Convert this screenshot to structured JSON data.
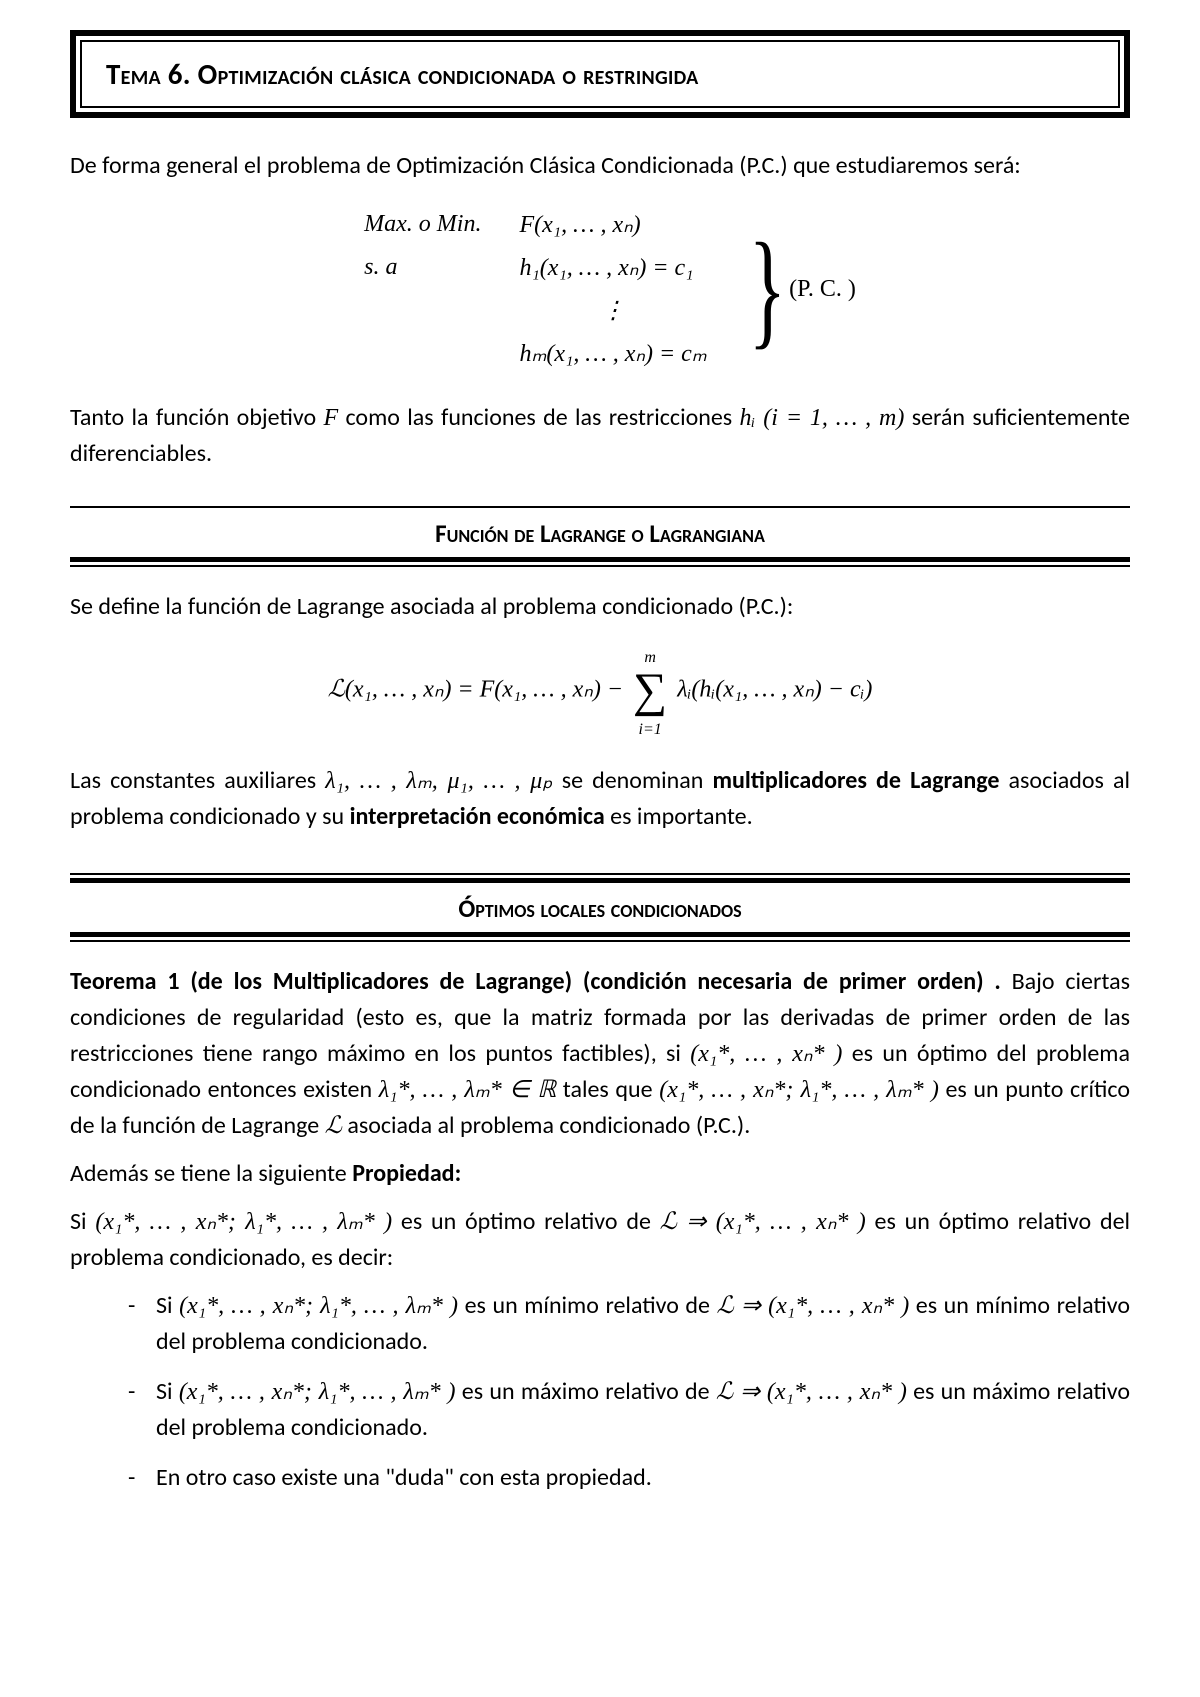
{
  "title": "Tema 6. Optimización clásica condicionada o restringida",
  "intro": "De forma general el problema de Optimización Clásica Condicionada (P.C.) que estudiaremos será:",
  "pc_block": {
    "label_maxmin": "Max. o Min.",
    "expr_F": "F(x₁, … , xₙ)",
    "label_sa": "s. a",
    "expr_h1": "h₁(x₁, … , xₙ) = c₁",
    "vdots": "⋮",
    "expr_hm": "hₘ(x₁, … , xₙ) = cₘ",
    "right_label": "(P. C. )"
  },
  "para_after_pc_a": "Tanto la función objetivo ",
  "para_after_pc_F": "F",
  "para_after_pc_b": " como las funciones de las restricciones ",
  "para_after_pc_h": "hᵢ (i = 1, … , m)",
  "para_after_pc_c": " serán suficientemente diferenciables.",
  "section1": {
    "title": "Función de Lagrange o Lagrangiana",
    "intro": "Se define la función de Lagrange asociada al problema condicionado (P.C.):",
    "lagrange_lhs": "ℒ(x₁, … , xₙ) = F(x₁, … , xₙ) − ",
    "sum_top": "m",
    "sum_bot": "i=1",
    "lagrange_rhs": " λᵢ(hᵢ(x₁, … , xₙ) − cᵢ)",
    "after_a": "Las constantes auxiliares ",
    "after_lambdas": "λ₁, … , λₘ, μ₁, … , μₚ",
    "after_b": " se denominan ",
    "bold1": "multiplicadores de Lagrange",
    "after_c": " asociados al problema condicionado y su ",
    "bold2": "interpretación económica",
    "after_d": " es importante."
  },
  "section2": {
    "title": "Óptimos locales condicionados",
    "teo_head": "Teorema 1 (de los Multiplicadores de Lagrange) (condición necesaria de primer orden) .",
    "teo_body_a": "Bajo ciertas condiciones de regularidad (esto es, que la matriz formada por las derivadas de primer orden de las restricciones tiene rango máximo en los puntos factibles), si ",
    "teo_x": "(x₁*, … , xₙ* )",
    "teo_body_b": " es un óptimo del problema condicionado entonces existen ",
    "teo_lam": "λ₁*, … , λₘ* ∈ ℝ",
    "teo_body_c": " tales que ",
    "teo_xlam": "(x₁*, … , xₙ*; λ₁*, … , λₘ* )",
    "teo_body_d": " es un punto crítico de la función de Lagrange ",
    "teo_L": "ℒ",
    "teo_body_e": " asociada al problema condicionado (P.C.).",
    "prop_intro_a": "Además se tiene la siguiente ",
    "prop_intro_b": "Propiedad:",
    "prop_main_a": "Si ",
    "prop_main_x": "(x₁*, … , xₙ*; λ₁*, … , λₘ* )",
    "prop_main_b": " es un óptimo relativo de ",
    "prop_main_L": "ℒ ⇒ (x₁*, … , xₙ* )",
    "prop_main_c": " es un óptimo relativo del problema condicionado, es decir:",
    "items": [
      {
        "a": "Si ",
        "x": "(x₁*, … , xₙ*; λ₁*, … , λₘ* )",
        "b": " es un mínimo relativo de ",
        "L": "ℒ ⇒ (x₁*, … , xₙ* )",
        "c": " es un mínimo relativo del problema condicionado."
      },
      {
        "a": "Si ",
        "x": "(x₁*, … , xₙ*; λ₁*, … , λₘ* )",
        "b": " es un máximo relativo de ",
        "L": "ℒ ⇒ (x₁*, … , xₙ* )",
        "c": " es un máximo relativo del problema condicionado."
      },
      {
        "a": "En otro caso existe una \"duda\" con esta propiedad.",
        "x": "",
        "b": "",
        "L": "",
        "c": ""
      }
    ]
  },
  "colors": {
    "text": "#000000",
    "bg": "#ffffff",
    "rule": "#000000"
  },
  "fonts": {
    "body": "Calibri",
    "math": "Cambria Math",
    "title_size": 29,
    "body_size": 24
  }
}
